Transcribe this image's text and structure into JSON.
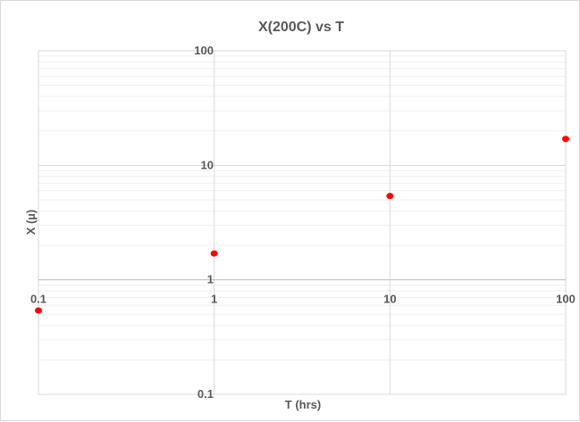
{
  "chart_data": {
    "type": "scatter",
    "title": "X(200C) vs T",
    "xlabel": "T (hrs)",
    "ylabel": "X (µ)",
    "x_scale": "log",
    "y_scale": "log",
    "xlim": [
      0.1,
      100
    ],
    "ylim": [
      0.1,
      100
    ],
    "x_ticks": [
      "0.1",
      "1",
      "10",
      "100"
    ],
    "y_ticks": [
      "0.1",
      "1",
      "10",
      "100"
    ],
    "grid": true,
    "minor_grid": true,
    "legend": "none",
    "marker_color": "#ff0000",
    "series": [
      {
        "points": [
          {
            "x": 0.1,
            "y": 0.54
          },
          {
            "x": 1,
            "y": 1.7
          },
          {
            "x": 10,
            "y": 5.4
          },
          {
            "x": 100,
            "y": 17
          }
        ]
      }
    ]
  }
}
